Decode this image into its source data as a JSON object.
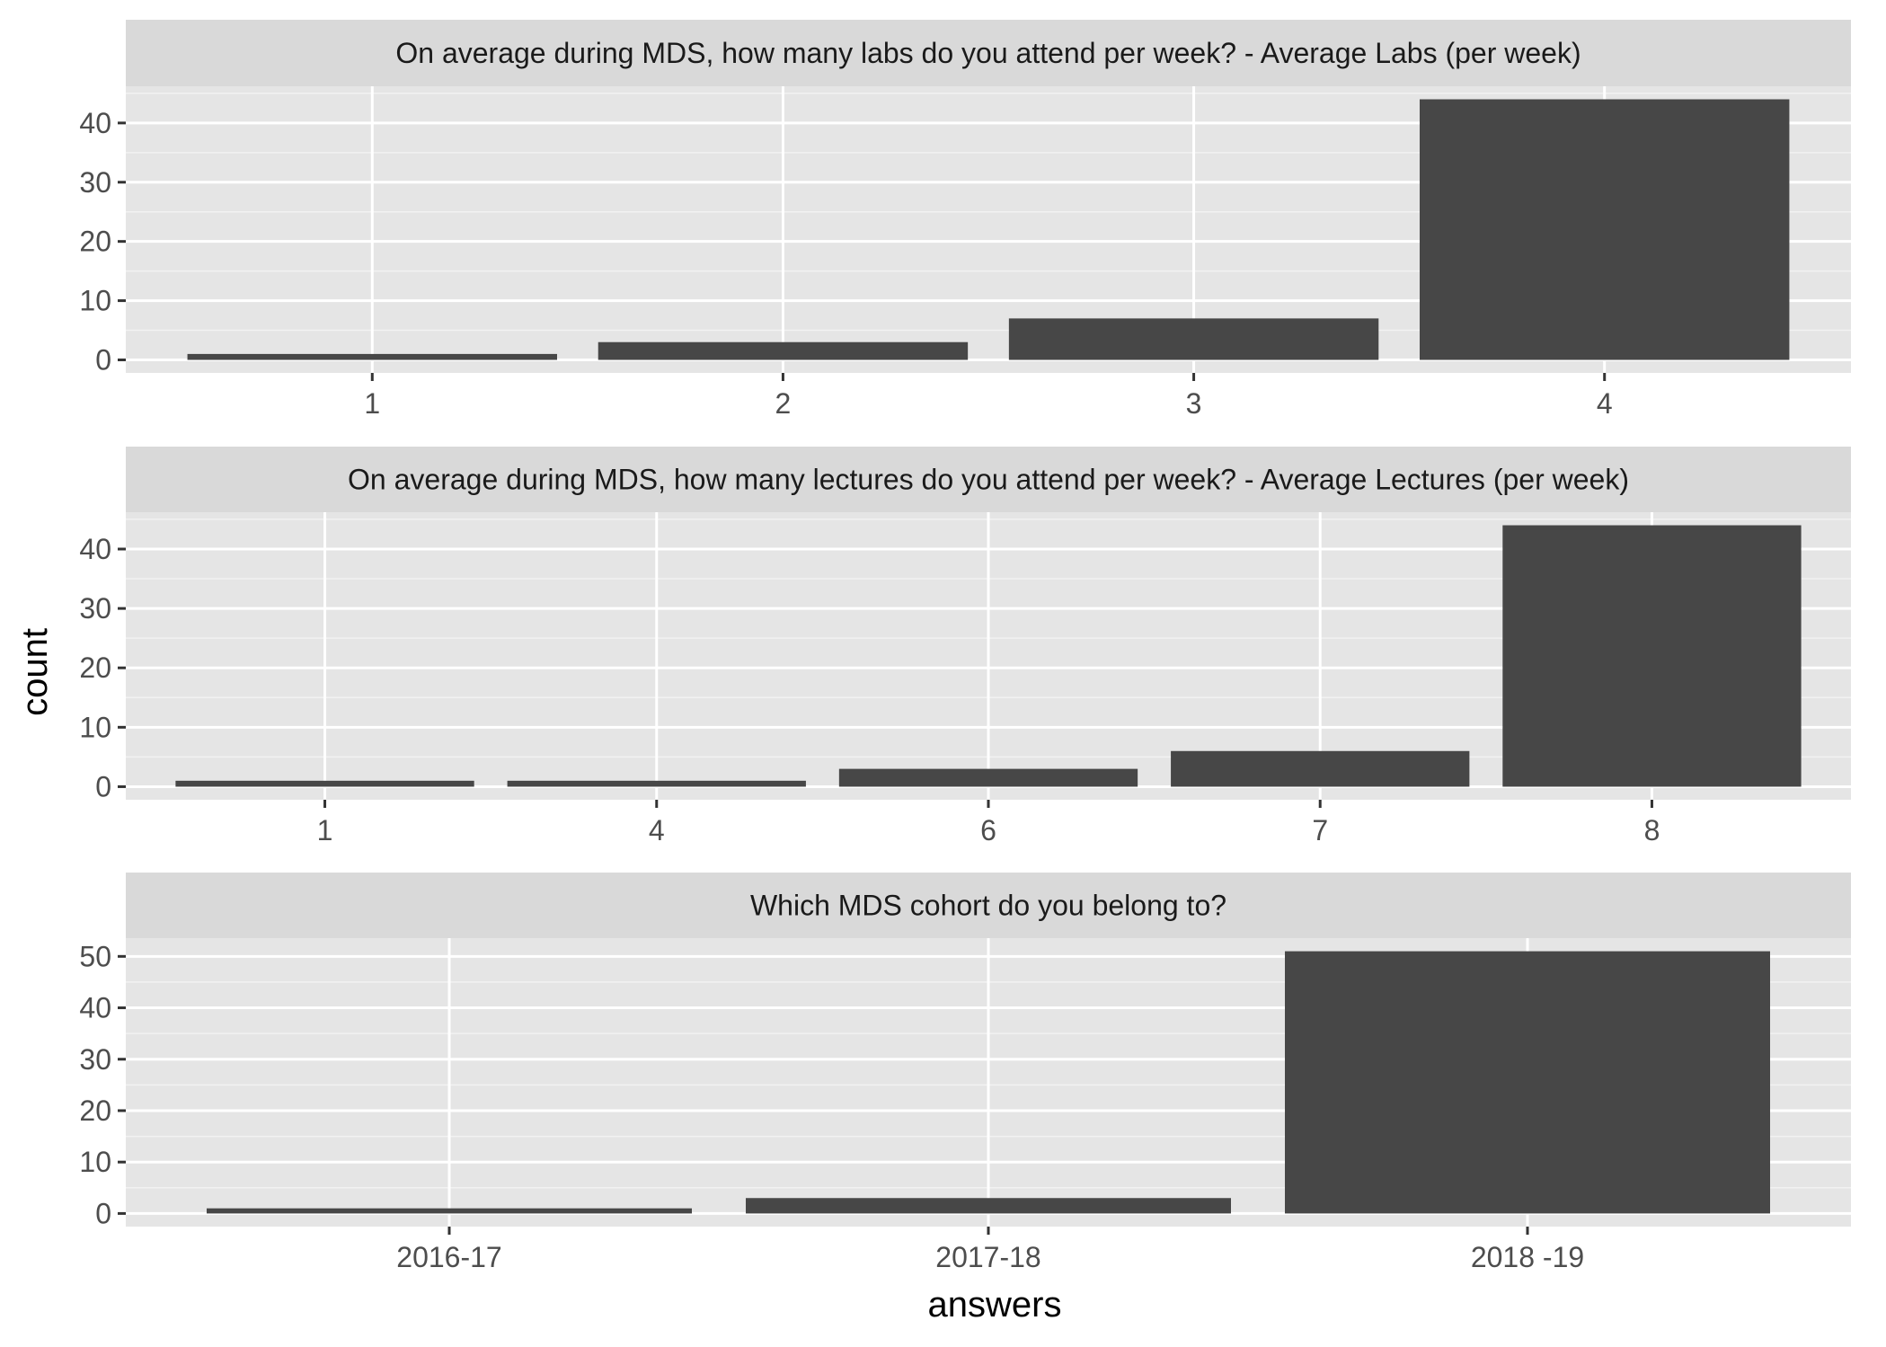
{
  "colors": {
    "panel_background": "#e5e5e5",
    "strip_background": "#d9d9d9",
    "grid_major": "#ffffff",
    "grid_minor": "#f2f2f2",
    "bar_fill": "#474747",
    "tick_mark": "#333333"
  },
  "chart_data": {
    "type": "bar",
    "layout": "facet_wrap, one column, free scales",
    "xlabel": "answers",
    "ylabel": "count",
    "panels": [
      {
        "title": "On average during MDS, how many labs do you attend per week? - Average Labs (per week)",
        "categories": [
          "1",
          "2",
          "3",
          "4"
        ],
        "values": [
          1,
          3,
          7,
          44
        ],
        "ylim": [
          -2.2,
          46.2
        ],
        "yticks": [
          0,
          10,
          20,
          30,
          40
        ]
      },
      {
        "title": "On average during MDS, how many lectures do you attend per week? - Average Lectures (per week)",
        "categories": [
          "1",
          "4",
          "6",
          "7",
          "8"
        ],
        "values": [
          1,
          1,
          3,
          6,
          44
        ],
        "ylim": [
          -2.2,
          46.2
        ],
        "yticks": [
          0,
          10,
          20,
          30,
          40
        ]
      },
      {
        "title": "Which MDS cohort do you belong to?",
        "categories": [
          "2016-17",
          "2017-18",
          "2018 -19"
        ],
        "values": [
          1,
          3,
          51
        ],
        "ylim": [
          -2.55,
          53.55
        ],
        "yticks": [
          0,
          10,
          20,
          30,
          40,
          50
        ]
      }
    ]
  }
}
